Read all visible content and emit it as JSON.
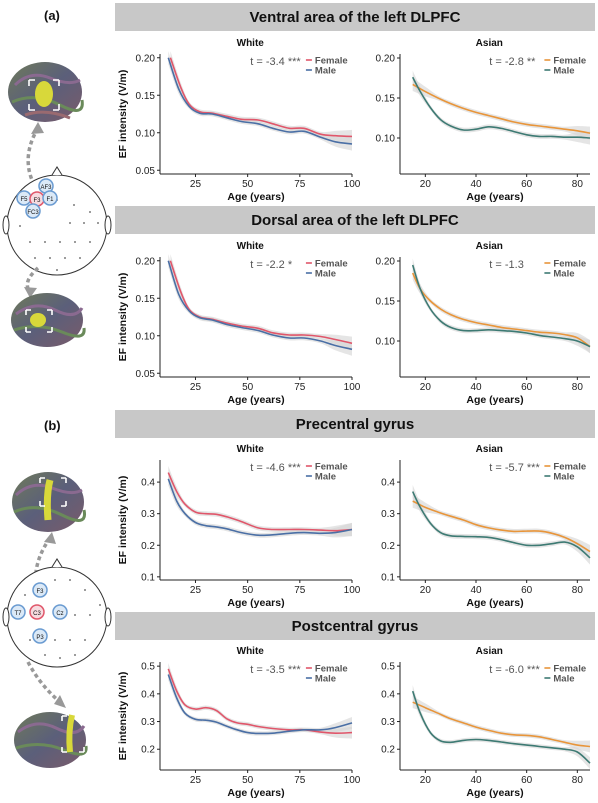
{
  "panel_labels": {
    "a": "(a)",
    "b": "(b)"
  },
  "banners": {
    "ventral": "Ventral area of the left DLPFC",
    "dorsal": "Dorsal area of the left DLPFC",
    "precentral": "Precentral gyrus",
    "postcentral": "Postcentral gyrus"
  },
  "electrodes_a": [
    "AF3",
    "F5",
    "F3",
    "F1",
    "FC3"
  ],
  "electrodes_b": [
    "F3",
    "T7",
    "C3",
    "Cz",
    "P3"
  ],
  "colors": {
    "white_female": "#e0566a",
    "white_male": "#4a6fa5",
    "asian_female": "#e8953a",
    "asian_male": "#3d7a73",
    "banner": "#c8c8c8",
    "ribbon": "#d4d4d4"
  },
  "common": {
    "ylabel": "EF intensity (V/m)",
    "xlabel": "Age (years)",
    "legend_female": "Female",
    "legend_male": "Male"
  },
  "chart_data": [
    {
      "type": "line",
      "group": "White",
      "region": "Ventral area of the left DLPFC",
      "title": "White",
      "stat": "t = -3.4 ***",
      "xlabel": "Age (years)",
      "ylabel": "EF intensity (V/m)",
      "xlim": [
        8,
        100
      ],
      "ylim": [
        0.045,
        0.205
      ],
      "xticks": [
        25,
        50,
        75,
        100
      ],
      "yticks": [
        0.05,
        0.1,
        0.15,
        0.2
      ],
      "series": [
        {
          "name": "Female",
          "x": [
            13,
            18,
            22,
            27,
            33,
            40,
            47,
            55,
            62,
            70,
            77,
            85,
            92,
            100
          ],
          "y": [
            0.2,
            0.16,
            0.138,
            0.128,
            0.126,
            0.122,
            0.118,
            0.117,
            0.112,
            0.106,
            0.106,
            0.098,
            0.096,
            0.095
          ]
        },
        {
          "name": "Male",
          "x": [
            12,
            17,
            22,
            27,
            33,
            40,
            47,
            55,
            62,
            70,
            77,
            85,
            92,
            100
          ],
          "y": [
            0.2,
            0.158,
            0.135,
            0.126,
            0.125,
            0.12,
            0.115,
            0.112,
            0.106,
            0.101,
            0.102,
            0.094,
            0.088,
            0.085
          ]
        }
      ]
    },
    {
      "type": "line",
      "group": "Asian",
      "region": "Ventral area of the left DLPFC",
      "title": "Asian",
      "stat": "t = -2.8 **",
      "xlabel": "Age (years)",
      "ylabel": "EF intensity (V/m)",
      "xlim": [
        10,
        85
      ],
      "ylim": [
        0.055,
        0.205
      ],
      "xticks": [
        20,
        40,
        60,
        80
      ],
      "yticks": [
        0.1,
        0.15,
        0.2
      ],
      "series": [
        {
          "name": "Female",
          "x": [
            15,
            20,
            25,
            30,
            35,
            40,
            45,
            50,
            55,
            60,
            65,
            70,
            75,
            80,
            85
          ],
          "y": [
            0.167,
            0.158,
            0.15,
            0.143,
            0.137,
            0.132,
            0.128,
            0.124,
            0.12,
            0.117,
            0.115,
            0.113,
            0.111,
            0.109,
            0.106
          ]
        },
        {
          "name": "Male",
          "x": [
            15,
            18,
            22,
            26,
            30,
            35,
            40,
            45,
            50,
            55,
            60,
            65,
            70,
            75,
            80,
            85
          ],
          "y": [
            0.176,
            0.158,
            0.138,
            0.123,
            0.115,
            0.11,
            0.111,
            0.114,
            0.112,
            0.108,
            0.104,
            0.102,
            0.102,
            0.101,
            0.101,
            0.1
          ]
        }
      ]
    },
    {
      "type": "line",
      "group": "White",
      "region": "Dorsal area of the left DLPFC",
      "title": "White",
      "stat": "t = -2.2 *",
      "xlabel": "Age (years)",
      "ylabel": "EF intensity (V/m)",
      "xlim": [
        8,
        100
      ],
      "ylim": [
        0.045,
        0.205
      ],
      "xticks": [
        25,
        50,
        75,
        100
      ],
      "yticks": [
        0.05,
        0.1,
        0.15,
        0.2
      ],
      "series": [
        {
          "name": "Female",
          "x": [
            13,
            18,
            22,
            27,
            33,
            40,
            47,
            55,
            62,
            70,
            77,
            85,
            92,
            100
          ],
          "y": [
            0.2,
            0.158,
            0.135,
            0.125,
            0.122,
            0.117,
            0.113,
            0.11,
            0.104,
            0.101,
            0.101,
            0.099,
            0.095,
            0.09
          ]
        },
        {
          "name": "Male",
          "x": [
            12,
            17,
            22,
            27,
            33,
            40,
            47,
            55,
            62,
            70,
            77,
            85,
            92,
            100
          ],
          "y": [
            0.2,
            0.155,
            0.133,
            0.124,
            0.121,
            0.115,
            0.111,
            0.107,
            0.101,
            0.097,
            0.097,
            0.093,
            0.087,
            0.082
          ]
        }
      ]
    },
    {
      "type": "line",
      "group": "Asian",
      "region": "Dorsal area of the left DLPFC",
      "title": "Asian",
      "stat": "t = -1.3",
      "xlabel": "Age (years)",
      "ylabel": "EF intensity (V/m)",
      "xlim": [
        10,
        85
      ],
      "ylim": [
        0.055,
        0.205
      ],
      "xticks": [
        20,
        40,
        60,
        80
      ],
      "yticks": [
        0.1,
        0.15,
        0.2
      ],
      "series": [
        {
          "name": "Female",
          "x": [
            15,
            18,
            22,
            26,
            30,
            35,
            40,
            45,
            50,
            55,
            60,
            65,
            70,
            75,
            80,
            85
          ],
          "y": [
            0.185,
            0.165,
            0.15,
            0.14,
            0.133,
            0.127,
            0.123,
            0.12,
            0.117,
            0.115,
            0.113,
            0.111,
            0.11,
            0.108,
            0.104,
            0.093
          ]
        },
        {
          "name": "Male",
          "x": [
            15,
            18,
            22,
            26,
            30,
            35,
            40,
            45,
            50,
            55,
            60,
            65,
            70,
            75,
            80,
            85
          ],
          "y": [
            0.195,
            0.165,
            0.14,
            0.125,
            0.117,
            0.113,
            0.113,
            0.114,
            0.113,
            0.112,
            0.11,
            0.107,
            0.105,
            0.103,
            0.1,
            0.093
          ]
        }
      ]
    },
    {
      "type": "line",
      "group": "White",
      "region": "Precentral gyrus",
      "title": "White",
      "stat": "t = -4.6 ***",
      "xlabel": "Age (years)",
      "ylabel": "EF intensity (V/m)",
      "xlim": [
        8,
        100
      ],
      "ylim": [
        0.09,
        0.47
      ],
      "xticks": [
        25,
        50,
        75,
        100
      ],
      "yticks": [
        0.1,
        0.2,
        0.3,
        0.4
      ],
      "series": [
        {
          "name": "Female",
          "x": [
            12,
            16,
            20,
            25,
            30,
            35,
            40,
            47,
            55,
            62,
            70,
            77,
            85,
            92,
            100
          ],
          "y": [
            0.43,
            0.37,
            0.33,
            0.305,
            0.3,
            0.298,
            0.29,
            0.275,
            0.255,
            0.25,
            0.25,
            0.25,
            0.248,
            0.246,
            0.25
          ]
        },
        {
          "name": "Male",
          "x": [
            12,
            16,
            20,
            25,
            30,
            35,
            40,
            47,
            55,
            62,
            70,
            77,
            85,
            92,
            100
          ],
          "y": [
            0.41,
            0.34,
            0.3,
            0.272,
            0.262,
            0.258,
            0.252,
            0.24,
            0.232,
            0.233,
            0.238,
            0.24,
            0.238,
            0.24,
            0.25
          ]
        }
      ]
    },
    {
      "type": "line",
      "group": "Asian",
      "region": "Precentral gyrus",
      "title": "Asian",
      "stat": "t = -5.7 ***",
      "xlabel": "Age (years)",
      "ylabel": "EF intensity (V/m)",
      "xlim": [
        10,
        85
      ],
      "ylim": [
        0.09,
        0.47
      ],
      "xticks": [
        20,
        40,
        60,
        80
      ],
      "yticks": [
        0.1,
        0.2,
        0.3,
        0.4
      ],
      "series": [
        {
          "name": "Female",
          "x": [
            15,
            20,
            25,
            30,
            35,
            40,
            45,
            50,
            55,
            60,
            65,
            70,
            75,
            80,
            85
          ],
          "y": [
            0.34,
            0.32,
            0.305,
            0.292,
            0.28,
            0.265,
            0.255,
            0.248,
            0.244,
            0.245,
            0.245,
            0.238,
            0.225,
            0.205,
            0.18
          ]
        },
        {
          "name": "Male",
          "x": [
            15,
            18,
            22,
            26,
            30,
            35,
            40,
            45,
            50,
            55,
            60,
            65,
            70,
            75,
            80,
            85
          ],
          "y": [
            0.37,
            0.32,
            0.27,
            0.24,
            0.23,
            0.228,
            0.227,
            0.225,
            0.218,
            0.208,
            0.2,
            0.2,
            0.205,
            0.21,
            0.195,
            0.16
          ]
        }
      ]
    },
    {
      "type": "line",
      "group": "White",
      "region": "Postcentral gyrus",
      "title": "White",
      "stat": "t = -3.5 ***",
      "xlabel": "Age (years)",
      "ylabel": "EF intensity (V/m)",
      "xlim": [
        8,
        100
      ],
      "ylim": [
        0.125,
        0.515
      ],
      "xticks": [
        25,
        50,
        75,
        100
      ],
      "yticks": [
        0.2,
        0.3,
        0.4,
        0.5
      ],
      "series": [
        {
          "name": "Female",
          "x": [
            12,
            16,
            20,
            25,
            30,
            35,
            40,
            45,
            50,
            55,
            62,
            70,
            77,
            85,
            92,
            100
          ],
          "y": [
            0.49,
            0.41,
            0.36,
            0.345,
            0.35,
            0.34,
            0.31,
            0.295,
            0.29,
            0.282,
            0.275,
            0.27,
            0.27,
            0.262,
            0.258,
            0.26
          ]
        },
        {
          "name": "Male",
          "x": [
            12,
            16,
            20,
            25,
            30,
            35,
            40,
            45,
            50,
            55,
            62,
            70,
            77,
            85,
            92,
            100
          ],
          "y": [
            0.47,
            0.385,
            0.33,
            0.308,
            0.305,
            0.298,
            0.283,
            0.27,
            0.26,
            0.257,
            0.258,
            0.265,
            0.27,
            0.27,
            0.278,
            0.295
          ]
        }
      ]
    },
    {
      "type": "line",
      "group": "Asian",
      "region": "Postcentral gyrus",
      "title": "Asian",
      "stat": "t = -6.0 ***",
      "xlabel": "Age (years)",
      "ylabel": "EF intensity (V/m)",
      "xlim": [
        10,
        85
      ],
      "ylim": [
        0.125,
        0.515
      ],
      "xticks": [
        20,
        40,
        60,
        80
      ],
      "yticks": [
        0.2,
        0.3,
        0.4,
        0.5
      ],
      "series": [
        {
          "name": "Female",
          "x": [
            15,
            20,
            25,
            30,
            35,
            40,
            45,
            50,
            55,
            60,
            65,
            70,
            75,
            80,
            85
          ],
          "y": [
            0.37,
            0.35,
            0.33,
            0.31,
            0.295,
            0.28,
            0.268,
            0.258,
            0.252,
            0.25,
            0.245,
            0.235,
            0.225,
            0.215,
            0.21
          ]
        },
        {
          "name": "Male",
          "x": [
            15,
            18,
            22,
            26,
            30,
            35,
            40,
            45,
            50,
            55,
            60,
            65,
            70,
            75,
            80,
            85
          ],
          "y": [
            0.41,
            0.33,
            0.26,
            0.23,
            0.225,
            0.232,
            0.235,
            0.232,
            0.226,
            0.22,
            0.215,
            0.21,
            0.205,
            0.2,
            0.19,
            0.15
          ]
        }
      ]
    }
  ]
}
